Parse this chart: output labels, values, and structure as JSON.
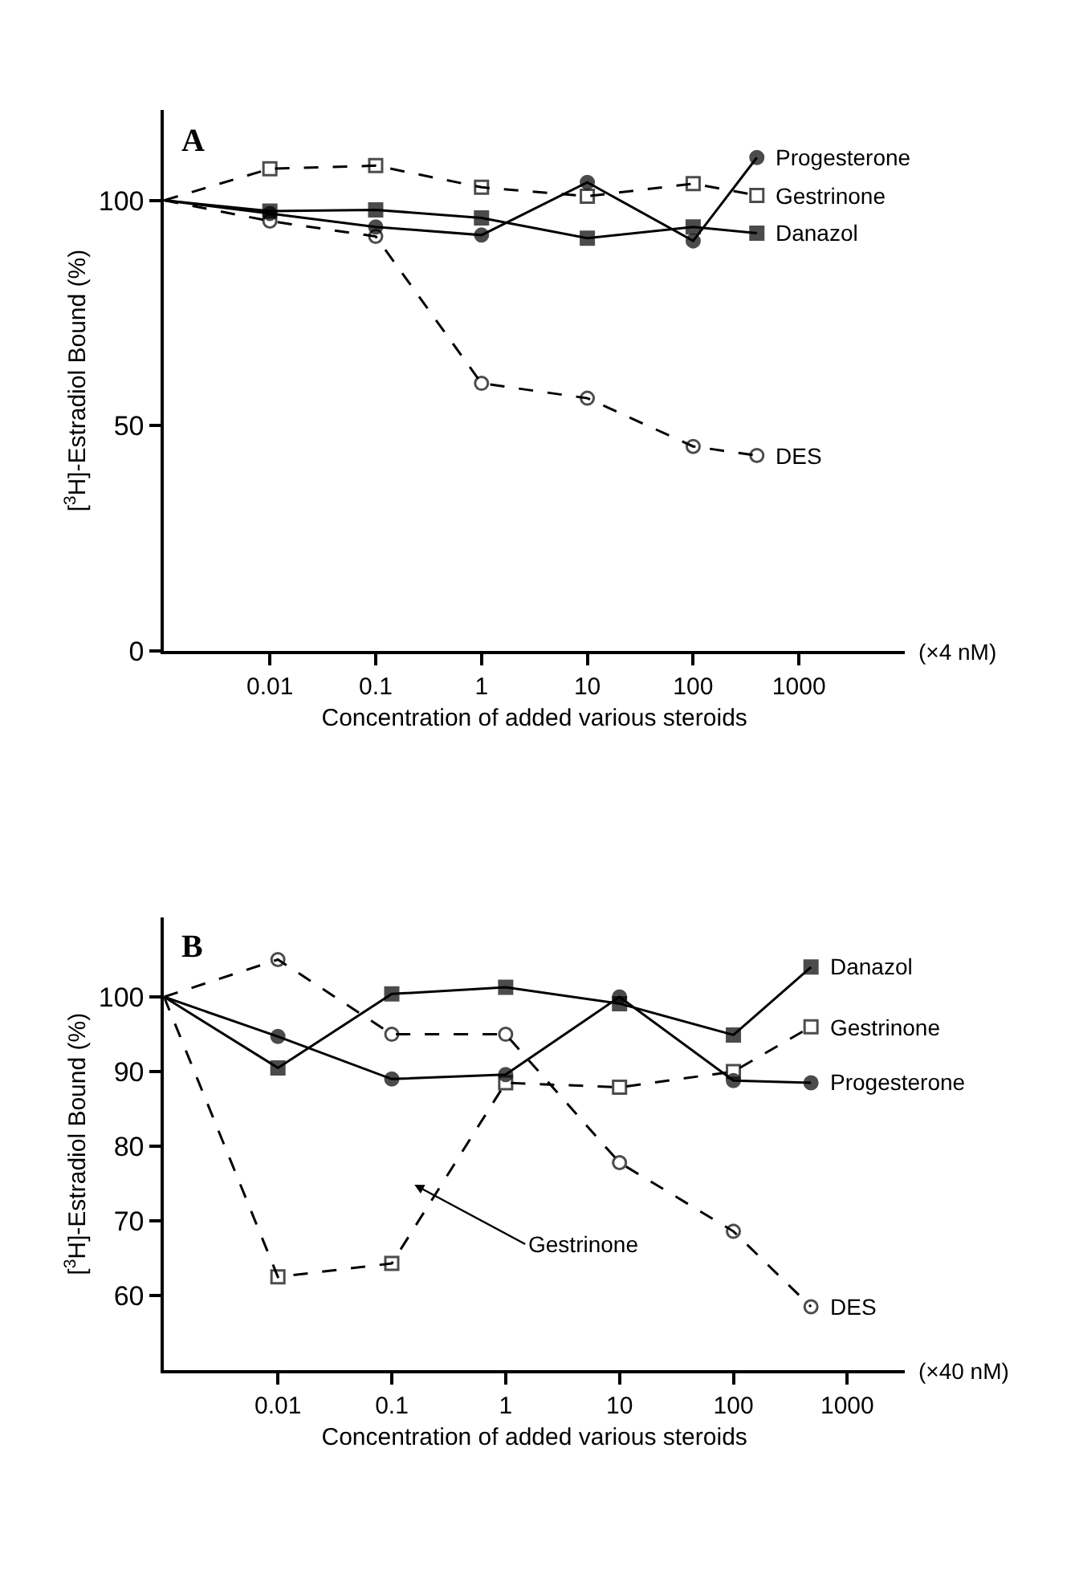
{
  "chart_data": [
    {
      "type": "line",
      "title": "A",
      "xlabel": "Concentration of added various steroids",
      "ylabel": "[$^{3}$H]-Estradiol Bound (%)",
      "log": "x",
      "legend": false,
      "x": [
        0.001,
        0.01,
        0.1,
        1,
        10,
        100,
        400
      ],
      "xlim": [
        0.001,
        10000
      ],
      "xticks": [
        0.01,
        0.1,
        1,
        10,
        100,
        1000
      ],
      "ylim": [
        0,
        120
      ],
      "yticks": [
        0,
        50,
        100
      ],
      "annotations": [
        "(×4 nM)"
      ],
      "series": [
        {
          "name": "Progesterone",
          "color": "#000000",
          "marker": "circle",
          "line_style": "solid",
          "values": [
            100,
            97.1,
            94.1,
            92.3,
            104,
            91,
            109.5
          ]
        },
        {
          "name": "Gestrinone",
          "color": "#000000",
          "marker": "square",
          "line_style": "dashed",
          "values": [
            100,
            107,
            107.7,
            102.9,
            100.9,
            103.7,
            101.1
          ]
        },
        {
          "name": "Danazol",
          "color": "#000000",
          "marker": "square",
          "line_style": "solid",
          "values": [
            100,
            97.6,
            97.9,
            96.1,
            91.6,
            94.1,
            92.7
          ]
        },
        {
          "name": "DES",
          "color": "#000000",
          "marker": "circle",
          "line_style": "dashed",
          "values": [
            100,
            95.4,
            92,
            59.4,
            56.1,
            45.4,
            43.4
          ]
        }
      ]
    },
    {
      "type": "line",
      "title": "B",
      "xlabel": "Concentration of added various steroids",
      "ylabel": "[$^{3}$H]-Estradiol Bound (%)",
      "log": "x",
      "legend": false,
      "x": [
        0.001,
        0.01,
        0.1,
        1,
        10,
        100,
        480
      ],
      "xlim": [
        0.001,
        3200
      ],
      "xticks": [
        0.01,
        0.1,
        1,
        10,
        100,
        1000
      ],
      "ylim": [
        50,
        110.6
      ],
      "yticks": [
        60,
        70,
        80,
        90,
        100
      ],
      "annotations": [
        "(×40 nM)",
        "Gestrinone"
      ],
      "series": [
        {
          "name": "Danazol",
          "color": "#000000",
          "marker": "square",
          "line_style": "solid",
          "values": [
            100,
            90.5,
            100.4,
            101.3,
            99.1,
            94.9,
            104
          ]
        },
        {
          "name": "Gestrinone",
          "color": "#000000",
          "marker": "square",
          "line_style": "dashed",
          "values": [
            100,
            62.5,
            64.3,
            88.5,
            87.9,
            90,
            96
          ]
        },
        {
          "name": "Progesterone",
          "color": "#000000",
          "marker": "circle",
          "line_style": "solid",
          "values": [
            100,
            94.7,
            89,
            89.6,
            100,
            88.8,
            88.5
          ]
        },
        {
          "name": "DES",
          "color": "#000000",
          "marker": "circle",
          "line_style": "dashed",
          "values": [
            100,
            105,
            95,
            95,
            77.8,
            68.6,
            58.5
          ]
        }
      ]
    }
  ]
}
